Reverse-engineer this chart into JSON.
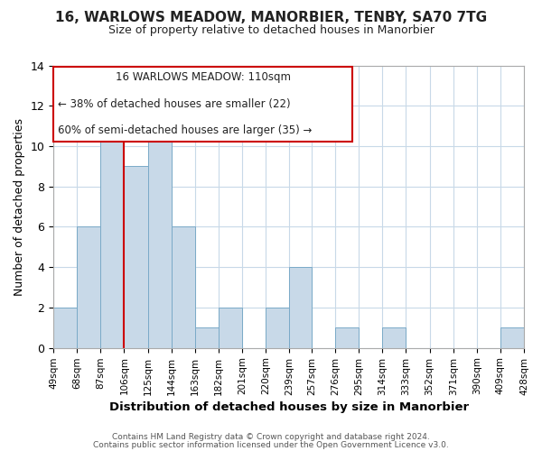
{
  "title_line1": "16, WARLOWS MEADOW, MANORBIER, TENBY, SA70 7TG",
  "title_line2": "Size of property relative to detached houses in Manorbier",
  "xlabel": "Distribution of detached houses by size in Manorbier",
  "ylabel": "Number of detached properties",
  "bin_edges": [
    49,
    68,
    87,
    106,
    125,
    144,
    163,
    182,
    201,
    220,
    239,
    257,
    276,
    295,
    314,
    333,
    352,
    371,
    390,
    409,
    428
  ],
  "bin_labels": [
    "49sqm",
    "68sqm",
    "87sqm",
    "106sqm",
    "125sqm",
    "144sqm",
    "163sqm",
    "182sqm",
    "201sqm",
    "220sqm",
    "239sqm",
    "257sqm",
    "276sqm",
    "295sqm",
    "314sqm",
    "333sqm",
    "352sqm",
    "371sqm",
    "390sqm",
    "409sqm",
    "428sqm"
  ],
  "counts": [
    2,
    6,
    12,
    9,
    11,
    6,
    1,
    2,
    0,
    2,
    4,
    0,
    1,
    0,
    1,
    0,
    0,
    0,
    0,
    1
  ],
  "bar_color": "#c8d9e8",
  "bar_edge_color": "#7aaac8",
  "reference_line_x": 106,
  "reference_line_color": "#cc0000",
  "ylim": [
    0,
    14
  ],
  "yticks": [
    0,
    2,
    4,
    6,
    8,
    10,
    12,
    14
  ],
  "ann_line1": "16 WARLOWS MEADOW: 110sqm",
  "ann_line2": "← 38% of detached houses are smaller (22)",
  "ann_line3": "60% of semi-detached houses are larger (35) →",
  "footer_line1": "Contains HM Land Registry data © Crown copyright and database right 2024.",
  "footer_line2": "Contains public sector information licensed under the Open Government Licence v3.0.",
  "background_color": "#ffffff",
  "grid_color": "#c8d9e8"
}
